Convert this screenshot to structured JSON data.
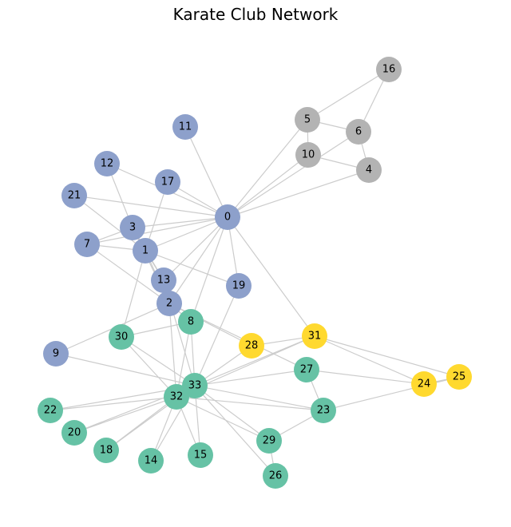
{
  "title": "Karate Club Network",
  "palette": {
    "blue": "#8da0cb",
    "gray": "#b3b3b3",
    "green": "#66c2a5",
    "yellow": "#ffd92f",
    "edge": "#cccccc"
  },
  "nodes": [
    {
      "id": "0",
      "group": "blue"
    },
    {
      "id": "1",
      "group": "blue"
    },
    {
      "id": "2",
      "group": "blue"
    },
    {
      "id": "3",
      "group": "blue"
    },
    {
      "id": "4",
      "group": "gray"
    },
    {
      "id": "5",
      "group": "gray"
    },
    {
      "id": "6",
      "group": "gray"
    },
    {
      "id": "7",
      "group": "blue"
    },
    {
      "id": "8",
      "group": "green"
    },
    {
      "id": "9",
      "group": "blue"
    },
    {
      "id": "10",
      "group": "gray"
    },
    {
      "id": "11",
      "group": "blue"
    },
    {
      "id": "12",
      "group": "blue"
    },
    {
      "id": "13",
      "group": "blue"
    },
    {
      "id": "14",
      "group": "green"
    },
    {
      "id": "15",
      "group": "green"
    },
    {
      "id": "16",
      "group": "gray"
    },
    {
      "id": "17",
      "group": "blue"
    },
    {
      "id": "18",
      "group": "green"
    },
    {
      "id": "19",
      "group": "blue"
    },
    {
      "id": "20",
      "group": "green"
    },
    {
      "id": "21",
      "group": "blue"
    },
    {
      "id": "22",
      "group": "green"
    },
    {
      "id": "23",
      "group": "green"
    },
    {
      "id": "24",
      "group": "yellow"
    },
    {
      "id": "25",
      "group": "yellow"
    },
    {
      "id": "26",
      "group": "green"
    },
    {
      "id": "27",
      "group": "green"
    },
    {
      "id": "28",
      "group": "yellow"
    },
    {
      "id": "29",
      "group": "green"
    },
    {
      "id": "30",
      "group": "green"
    },
    {
      "id": "31",
      "group": "yellow"
    },
    {
      "id": "32",
      "group": "green"
    },
    {
      "id": "33",
      "group": "green"
    }
  ],
  "edges": [
    [
      "0",
      "1"
    ],
    [
      "0",
      "2"
    ],
    [
      "0",
      "3"
    ],
    [
      "0",
      "4"
    ],
    [
      "0",
      "5"
    ],
    [
      "0",
      "6"
    ],
    [
      "0",
      "7"
    ],
    [
      "0",
      "8"
    ],
    [
      "0",
      "10"
    ],
    [
      "0",
      "11"
    ],
    [
      "0",
      "12"
    ],
    [
      "0",
      "13"
    ],
    [
      "0",
      "17"
    ],
    [
      "0",
      "19"
    ],
    [
      "0",
      "21"
    ],
    [
      "0",
      "31"
    ],
    [
      "1",
      "2"
    ],
    [
      "1",
      "3"
    ],
    [
      "1",
      "7"
    ],
    [
      "1",
      "13"
    ],
    [
      "1",
      "17"
    ],
    [
      "1",
      "19"
    ],
    [
      "1",
      "21"
    ],
    [
      "1",
      "30"
    ],
    [
      "2",
      "3"
    ],
    [
      "2",
      "7"
    ],
    [
      "2",
      "8"
    ],
    [
      "2",
      "9"
    ],
    [
      "2",
      "13"
    ],
    [
      "2",
      "27"
    ],
    [
      "2",
      "28"
    ],
    [
      "2",
      "32"
    ],
    [
      "3",
      "7"
    ],
    [
      "3",
      "12"
    ],
    [
      "3",
      "13"
    ],
    [
      "4",
      "6"
    ],
    [
      "4",
      "10"
    ],
    [
      "5",
      "6"
    ],
    [
      "5",
      "10"
    ],
    [
      "5",
      "16"
    ],
    [
      "6",
      "16"
    ],
    [
      "8",
      "30"
    ],
    [
      "8",
      "32"
    ],
    [
      "8",
      "33"
    ],
    [
      "9",
      "33"
    ],
    [
      "13",
      "33"
    ],
    [
      "14",
      "32"
    ],
    [
      "14",
      "33"
    ],
    [
      "15",
      "32"
    ],
    [
      "15",
      "33"
    ],
    [
      "18",
      "32"
    ],
    [
      "18",
      "33"
    ],
    [
      "19",
      "33"
    ],
    [
      "20",
      "32"
    ],
    [
      "20",
      "33"
    ],
    [
      "22",
      "32"
    ],
    [
      "22",
      "33"
    ],
    [
      "23",
      "25"
    ],
    [
      "23",
      "27"
    ],
    [
      "23",
      "29"
    ],
    [
      "23",
      "32"
    ],
    [
      "23",
      "33"
    ],
    [
      "24",
      "25"
    ],
    [
      "24",
      "27"
    ],
    [
      "24",
      "31"
    ],
    [
      "25",
      "31"
    ],
    [
      "26",
      "29"
    ],
    [
      "26",
      "33"
    ],
    [
      "27",
      "33"
    ],
    [
      "28",
      "31"
    ],
    [
      "28",
      "33"
    ],
    [
      "29",
      "32"
    ],
    [
      "29",
      "33"
    ],
    [
      "30",
      "32"
    ],
    [
      "30",
      "33"
    ],
    [
      "31",
      "32"
    ],
    [
      "31",
      "33"
    ],
    [
      "32",
      "33"
    ]
  ]
}
